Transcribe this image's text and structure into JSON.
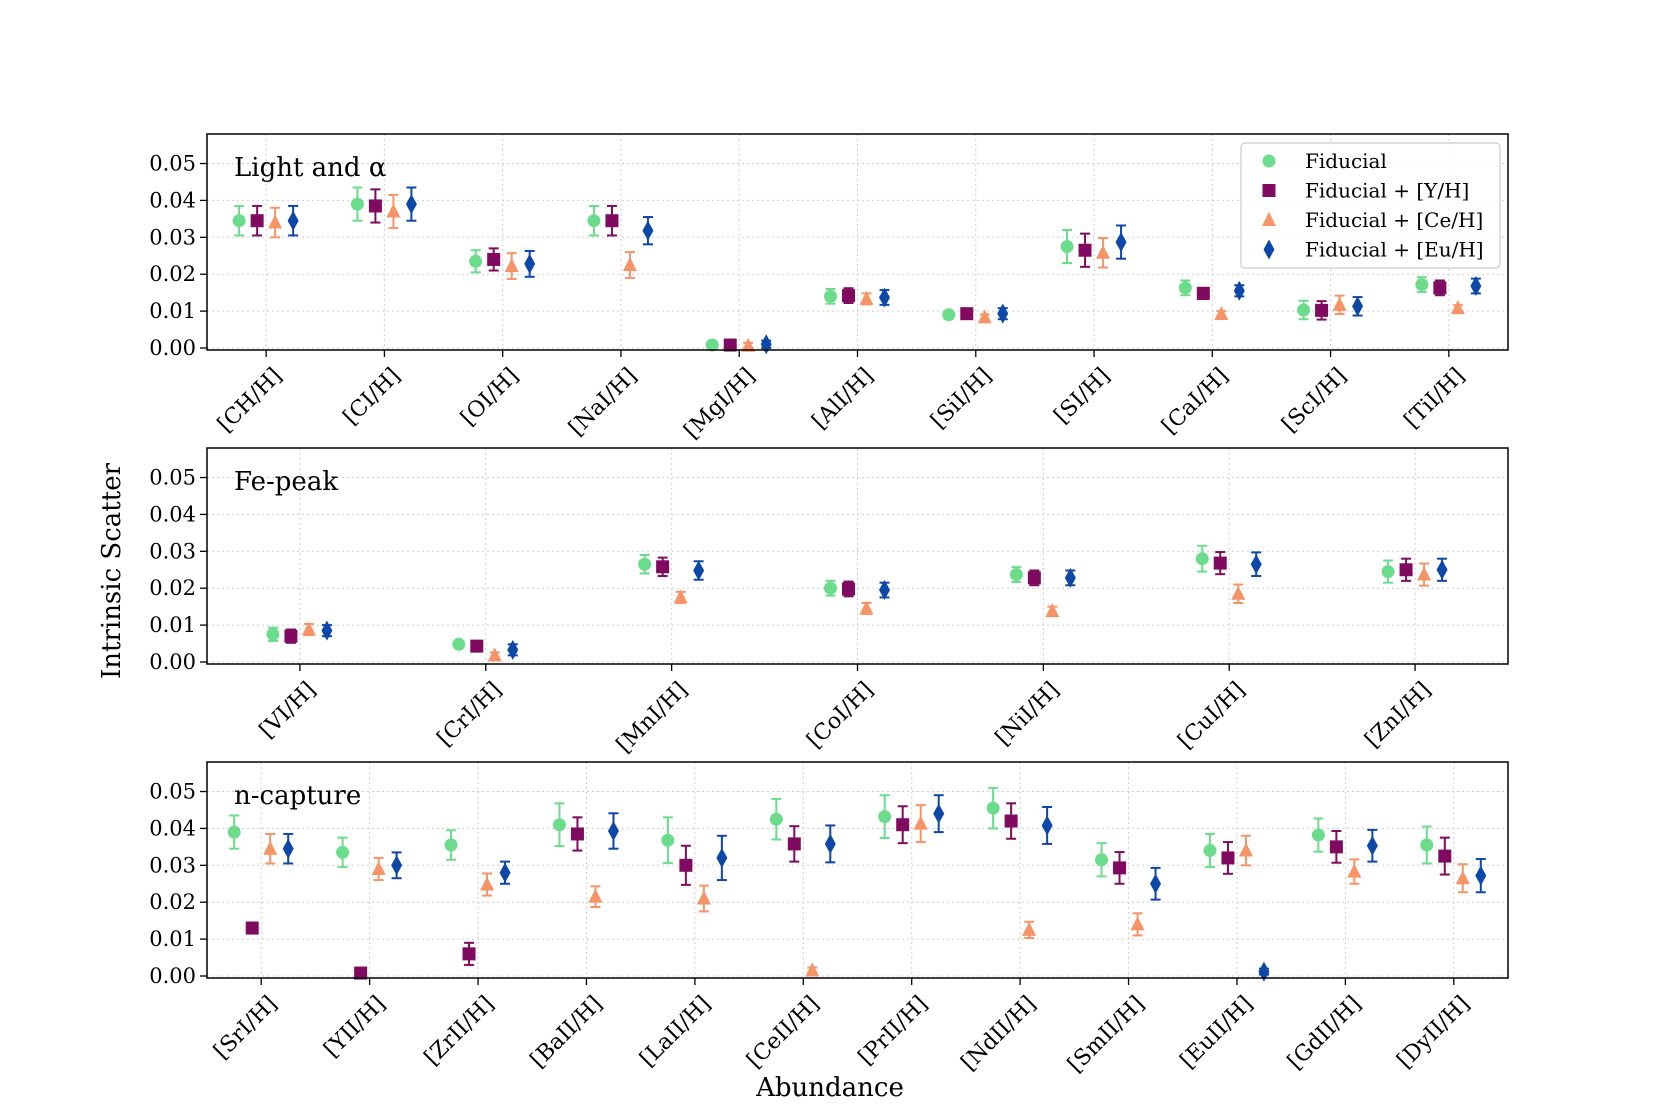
{
  "chart_data": {
    "type": "scatter",
    "xlabel": "Abundance",
    "ylabel": "Intrinsic Scatter",
    "ylim": [
      0,
      0.058
    ],
    "yticks": [
      "0.00",
      "0.01",
      "0.02",
      "0.03",
      "0.04",
      "0.05"
    ],
    "grid": true,
    "legend_position": "top-right",
    "series": [
      {
        "name": "Fiducial",
        "marker": "circle",
        "color": "#6bdc8b"
      },
      {
        "name": "Fiducial + [Y/H]",
        "marker": "square",
        "color": "#7f0a5f"
      },
      {
        "name": "Fiducial + [Ce/H]",
        "marker": "triangle",
        "color": "#f69467"
      },
      {
        "name": "Fiducial + [Eu/H]",
        "marker": "diamond",
        "color": "#0d47a8"
      }
    ],
    "panels": [
      {
        "title": "Light and α",
        "categories": [
          "[CH/H]",
          "[CI/H]",
          "[OI/H]",
          "[NaI/H]",
          "[MgI/H]",
          "[AlI/H]",
          "[SiI/H]",
          "[SI/H]",
          "[CaI/H]",
          "[ScI/H]",
          "[TiI/H]"
        ],
        "values": [
          [
            0.0345,
            0.039,
            0.0235,
            0.0345,
            0.0008,
            0.014,
            0.009,
            0.0275,
            0.0163,
            0.0103,
            0.0172
          ],
          [
            0.0345,
            0.0385,
            0.024,
            0.0345,
            0.0008,
            0.0142,
            0.0093,
            0.0265,
            0.0148,
            0.0102,
            0.0163
          ],
          [
            0.034,
            0.037,
            0.0222,
            0.0225,
            0.0006,
            0.0133,
            0.0083,
            0.0258,
            0.0092,
            0.0117,
            0.0108
          ],
          [
            0.0345,
            0.039,
            0.0228,
            0.0318,
            0.001,
            0.0137,
            0.0093,
            0.0287,
            0.0155,
            0.0113,
            0.0168
          ]
        ],
        "errors": [
          [
            0.004,
            0.0045,
            0.003,
            0.004,
            0.0008,
            0.002,
            0.001,
            0.0045,
            0.002,
            0.0025,
            0.002
          ],
          [
            0.004,
            0.0045,
            0.003,
            0.004,
            0.0008,
            0.002,
            0.001,
            0.0045,
            0.0015,
            0.0025,
            0.002
          ],
          [
            0.004,
            0.0045,
            0.0035,
            0.0035,
            0.0008,
            0.0015,
            0.0008,
            0.004,
            0.0008,
            0.0025,
            0.0008
          ],
          [
            0.004,
            0.0045,
            0.0035,
            0.0037,
            0.001,
            0.002,
            0.0015,
            0.0045,
            0.0015,
            0.0025,
            0.002
          ]
        ]
      },
      {
        "title": "Fe-peak",
        "categories": [
          "[VI/H]",
          "[CrI/H]",
          "[MnI/H]",
          "[CoI/H]",
          "[NiI/H]",
          "[CuI/H]",
          "[ZnI/H]"
        ],
        "values": [
          [
            0.0075,
            0.0048,
            0.0265,
            0.02,
            0.0237,
            0.028,
            0.0245
          ],
          [
            0.007,
            0.0043,
            0.0258,
            0.0198,
            0.0228,
            0.0268,
            0.025
          ],
          [
            0.0088,
            0.0018,
            0.0175,
            0.0145,
            0.0138,
            0.0185,
            0.0237
          ],
          [
            0.0085,
            0.0033,
            0.0248,
            0.0195,
            0.0228,
            0.0265,
            0.025
          ]
        ],
        "errors": [
          [
            0.0018,
            0.0008,
            0.0025,
            0.002,
            0.002,
            0.0035,
            0.003
          ],
          [
            0.0018,
            0.0008,
            0.0025,
            0.002,
            0.002,
            0.003,
            0.003
          ],
          [
            0.0015,
            0.0008,
            0.0015,
            0.0015,
            0.0012,
            0.0025,
            0.003
          ],
          [
            0.0015,
            0.0015,
            0.0025,
            0.002,
            0.002,
            0.0032,
            0.003
          ]
        ]
      },
      {
        "title": "n-capture",
        "categories": [
          "[SrI/H]",
          "[YII/H]",
          "[ZrII/H]",
          "[BaII/H]",
          "[LaII/H]",
          "[CeII/H]",
          "[PrII/H]",
          "[NdII/H]",
          "[SmII/H]",
          "[EuII/H]",
          "[GdII/H]",
          "[DyII/H]"
        ],
        "values": [
          [
            0.039,
            0.0335,
            0.0355,
            0.041,
            0.0368,
            0.0425,
            0.0432,
            0.0455,
            0.0315,
            0.034,
            0.0382,
            0.0355
          ],
          [
            0.013,
            0.0008,
            0.006,
            0.0385,
            0.03,
            0.0358,
            0.041,
            0.042,
            0.0293,
            0.032,
            0.035,
            0.0325
          ],
          [
            0.0345,
            0.029,
            0.0248,
            0.0215,
            0.021,
            0.0015,
            0.0413,
            0.0125,
            0.014,
            0.034,
            0.0283,
            0.0265
          ],
          [
            0.0345,
            0.03,
            0.028,
            0.0393,
            0.032,
            0.0358,
            0.044,
            0.0408,
            0.025,
            0.0012,
            0.0353,
            0.0272
          ]
        ],
        "errors": [
          [
            0.0045,
            0.004,
            0.004,
            0.0058,
            0.0062,
            0.0055,
            0.0058,
            0.0055,
            0.0045,
            0.0045,
            0.0045,
            0.005
          ],
          [
            0.0015,
            0.0008,
            0.003,
            0.0045,
            0.0053,
            0.0048,
            0.005,
            0.0048,
            0.0043,
            0.0043,
            0.0043,
            0.005
          ],
          [
            0.004,
            0.003,
            0.003,
            0.0028,
            0.0035,
            0.0008,
            0.005,
            0.0022,
            0.003,
            0.004,
            0.0033,
            0.0038
          ],
          [
            0.004,
            0.0035,
            0.003,
            0.0048,
            0.006,
            0.005,
            0.005,
            0.005,
            0.0043,
            0.0008,
            0.0043,
            0.0045
          ]
        ]
      }
    ]
  }
}
